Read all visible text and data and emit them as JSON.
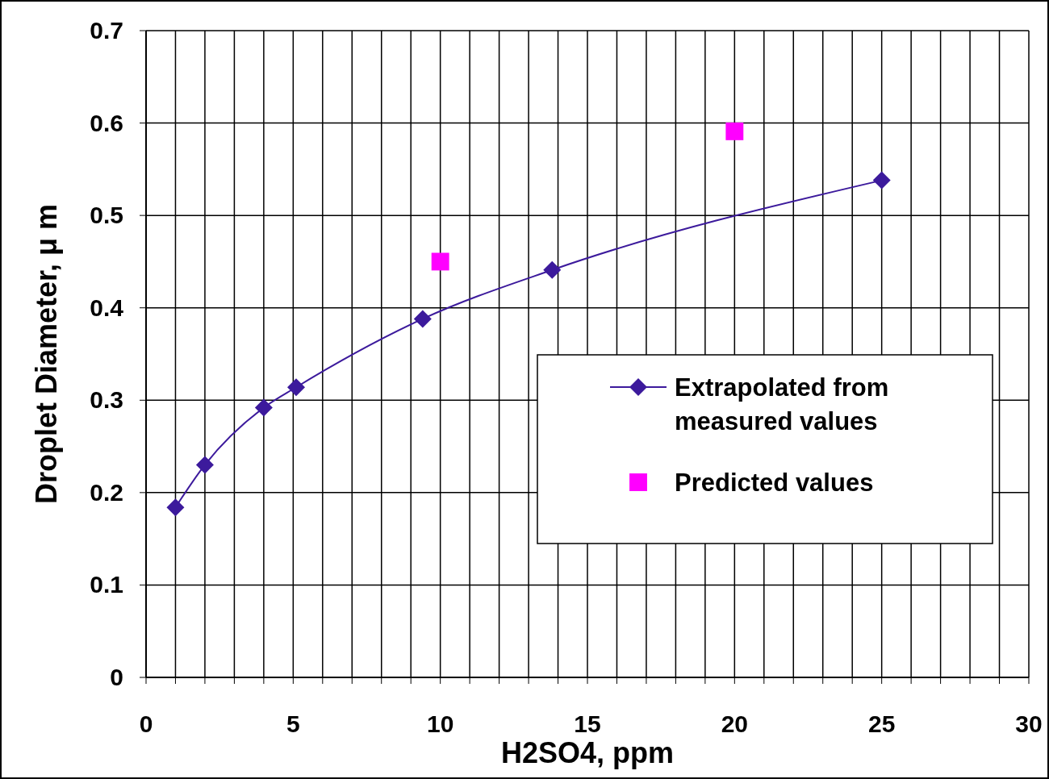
{
  "chart_data": {
    "type": "line",
    "xlabel": "H2SO4, ppm",
    "ylabel": "Droplet Diameter, μ m",
    "xlim": [
      0,
      30
    ],
    "ylim": [
      0,
      0.7
    ],
    "xticks": [
      0,
      {
        "value": 1,
        "label": null
      },
      {
        "value": 2,
        "label": null
      },
      {
        "value": 3,
        "label": null
      },
      {
        "value": 4,
        "label": null
      },
      5,
      {
        "value": 6,
        "label": null
      },
      {
        "value": 7,
        "label": null
      },
      {
        "value": 8,
        "label": null
      },
      {
        "value": 9,
        "label": null
      },
      10,
      {
        "value": 11,
        "label": null
      },
      {
        "value": 12,
        "label": null
      },
      {
        "value": 13,
        "label": null
      },
      {
        "value": 14,
        "label": null
      },
      15,
      {
        "value": 16,
        "label": null
      },
      {
        "value": 17,
        "label": null
      },
      {
        "value": 18,
        "label": null
      },
      {
        "value": 19,
        "label": null
      },
      20,
      {
        "value": 21,
        "label": null
      },
      {
        "value": 22,
        "label": null
      },
      {
        "value": 23,
        "label": null
      },
      {
        "value": 24,
        "label": null
      },
      25,
      {
        "value": 26,
        "label": null
      },
      {
        "value": 27,
        "label": null
      },
      {
        "value": 28,
        "label": null
      },
      {
        "value": 29,
        "label": null
      },
      30
    ],
    "yticks": [
      0,
      0.1,
      0.2,
      0.3,
      0.4,
      0.5,
      0.6,
      0.7
    ],
    "grid": true,
    "legend": "right",
    "series": [
      {
        "name": "Extrapolated from measured values",
        "marker": "diamond",
        "color": "#3c1a9c",
        "x": [
          1,
          2,
          4,
          5.1,
          9.4,
          13.8,
          25
        ],
        "values": [
          0.184,
          0.23,
          0.292,
          0.314,
          0.388,
          0.441,
          0.538
        ]
      },
      {
        "name": "Predicted values",
        "type": "scatter",
        "marker": "square",
        "color": "#ff00ff",
        "x": [
          10,
          20
        ],
        "values": [
          0.45,
          0.591
        ]
      }
    ]
  }
}
